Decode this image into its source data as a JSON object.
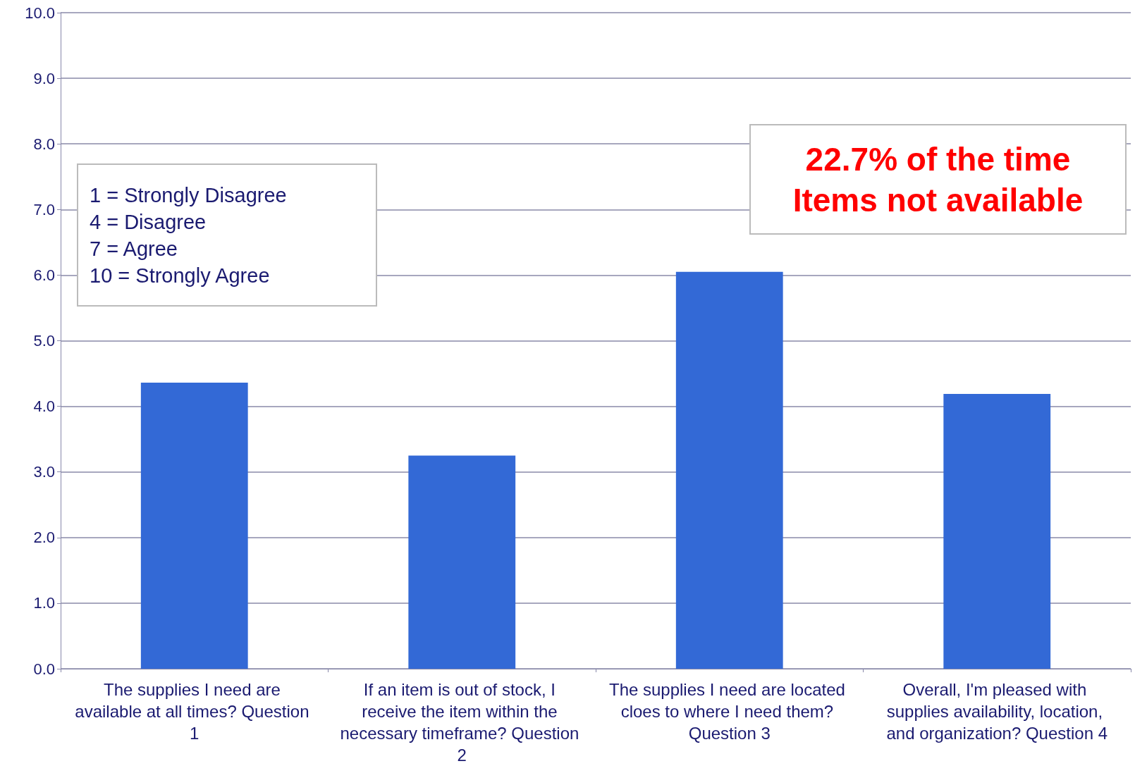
{
  "chart_data": {
    "type": "bar",
    "categories": [
      "The supplies I need are available at all times? Question 1",
      "If an item is out of stock, I receive the item within the necessary timeframe? Question 2",
      "The supplies I need are located cloes to where I need them? Question 3",
      "Overall, I'm pleased with supplies availability, location, and organization? Question 4"
    ],
    "values": [
      4.36,
      3.25,
      6.05,
      4.19
    ],
    "color": "#3369d6",
    "ylim": [
      0,
      10
    ],
    "yticks": [
      {
        "value": 0,
        "label": "0.0"
      },
      {
        "value": 1,
        "label": "1.0"
      },
      {
        "value": 2,
        "label": "2.0"
      },
      {
        "value": 3,
        "label": "3.0"
      },
      {
        "value": 4,
        "label": "4.0"
      },
      {
        "value": 5,
        "label": "5.0"
      },
      {
        "value": 6,
        "label": "6.0"
      },
      {
        "value": 7,
        "label": "7.0"
      },
      {
        "value": 8,
        "label": "8.0"
      },
      {
        "value": 9,
        "label": "9.0"
      },
      {
        "value": 10,
        "label": "10.0"
      }
    ],
    "grid": "y",
    "annotations": [
      "1 = Strongly Disagree\n4 = Disagree\n7 = Agree\n10 = Strongly Agree",
      "22.7% of the time\nItems not available"
    ]
  }
}
